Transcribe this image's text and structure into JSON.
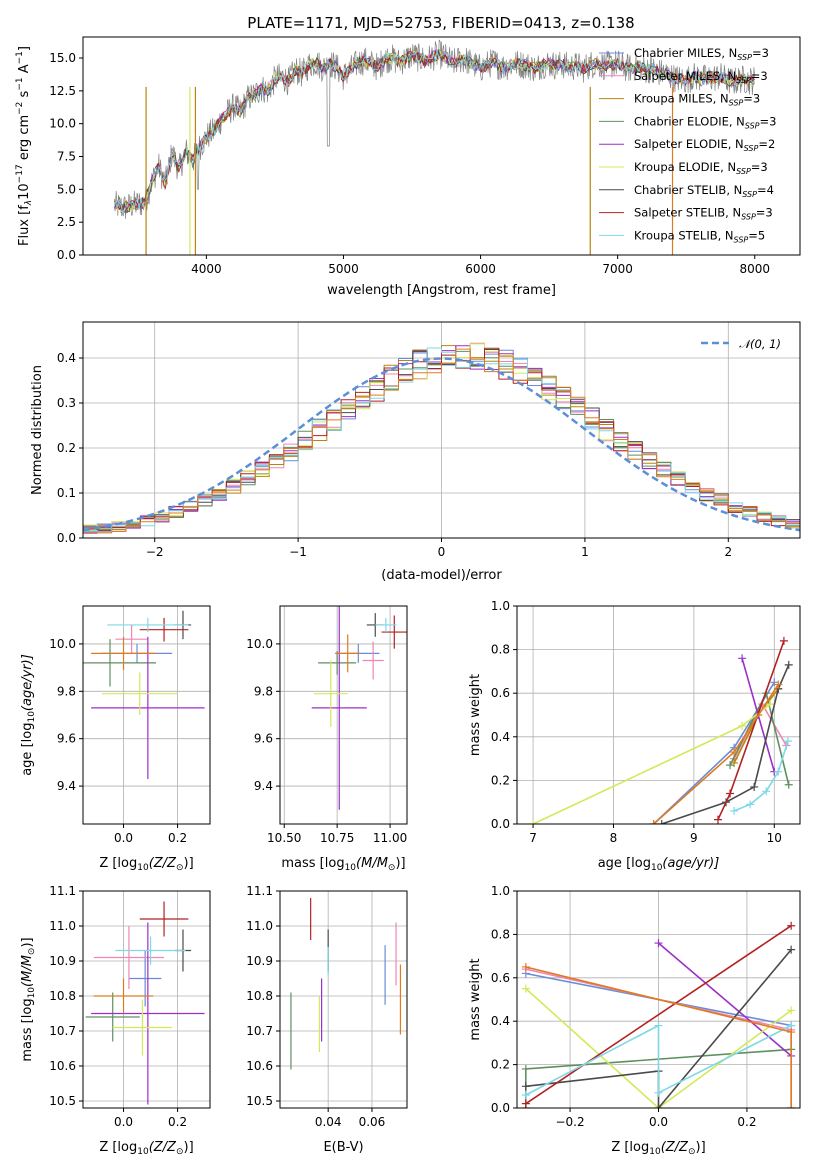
{
  "page_title": "PLATE=1171, MJD=52753, FIBERID=0413, z=0.138",
  "colors": {
    "Chabrier MILES": "#6a8cd8",
    "Salpeter MILES": "#f085b5",
    "Kroupa MILES": "#b8860b",
    "Chabrier ELODIE": "#5f8f5f",
    "Salpeter ELODIE": "#9b30c8",
    "Kroupa ELODIE": "#d4e85a",
    "Chabrier STELIB": "#4a4a4a",
    "Salpeter STELIB": "#b22222",
    "Kroupa STELIB": "#7fd8e6",
    "orange": "#e07a20",
    "data": "#808080"
  },
  "chart_data": [
    {
      "type": "line",
      "title": "PLATE=1171, MJD=52753, FIBERID=0413, z=0.138",
      "xlabel": "wavelength [Angstrom, rest frame]",
      "ylabel_parts": [
        "Flux [f",
        "λ",
        "10",
        "−17",
        " erg cm",
        "−2",
        " s",
        "−1",
        " A",
        "−1",
        "]"
      ],
      "xlim": [
        3100,
        8330
      ],
      "ylim": [
        0,
        16.6
      ],
      "xticks": [
        4000,
        5000,
        6000,
        7000,
        8000
      ],
      "yticks": [
        "0.0",
        "2.5",
        "5.0",
        "7.5",
        "10.0",
        "12.5",
        "15.0"
      ],
      "ytick_values": [
        0,
        2.5,
        5,
        7.5,
        10,
        12.5,
        15
      ],
      "legend_position": "right",
      "legend": [
        {
          "name": "Chabrier MILES",
          "n": "3"
        },
        {
          "name": "Salpeter MILES",
          "n": "3"
        },
        {
          "name": "Kroupa MILES",
          "n": "3"
        },
        {
          "name": "Chabrier ELODIE",
          "n": "3"
        },
        {
          "name": "Salpeter ELODIE",
          "n": "2"
        },
        {
          "name": "Kroupa ELODIE",
          "n": "3"
        },
        {
          "name": "Chabrier STELIB",
          "n": "4"
        },
        {
          "name": "Salpeter STELIB",
          "n": "3"
        },
        {
          "name": "Kroupa STELIB",
          "n": "5"
        }
      ],
      "legend_subscript": "SSP",
      "legend_prefix": "N",
      "spectrum_x": [
        3330,
        3400,
        3500,
        3550,
        3600,
        3650,
        3700,
        3750,
        3800,
        3850,
        3900,
        3950,
        4000,
        4050,
        4100,
        4150,
        4200,
        4250,
        4300,
        4350,
        4400,
        4450,
        4500,
        4550,
        4600,
        4650,
        4700,
        4750,
        4800,
        4850,
        4900,
        4950,
        5000,
        5050,
        5100,
        5150,
        5200,
        5250,
        5300,
        5350,
        5400,
        5450,
        5500,
        5550,
        5600,
        5650,
        5700,
        5750,
        5800,
        5850,
        5900,
        5950,
        6000,
        6050,
        6100,
        6150,
        6200,
        6250,
        6300,
        6350,
        6400,
        6450,
        6500,
        6550,
        6600,
        6650,
        6700,
        6750,
        6800,
        6850,
        6900,
        6950,
        7000,
        7050,
        7100,
        7150,
        7200,
        7250,
        7300,
        7350,
        7400,
        7450,
        7500,
        7550,
        7600,
        7650,
        7700,
        7750,
        7800,
        7850,
        7900,
        7950,
        8000
      ],
      "spectrum_y": [
        3.8,
        3.6,
        3.9,
        4.0,
        5.5,
        6.8,
        5.4,
        7.8,
        6.5,
        7.9,
        7.2,
        8.2,
        9.0,
        9.4,
        10.2,
        10.8,
        11.3,
        10.9,
        11.9,
        12.2,
        12.7,
        12.5,
        13.4,
        13.6,
        13.2,
        14.1,
        13.8,
        14.5,
        14.7,
        14.2,
        14.6,
        14.3,
        13.6,
        14.1,
        14.6,
        14.8,
        14.6,
        14.3,
        14.9,
        15.0,
        14.7,
        14.9,
        15.2,
        15.0,
        14.8,
        15.1,
        15.3,
        15.0,
        14.6,
        14.9,
        14.8,
        14.5,
        14.2,
        14.5,
        14.7,
        14.3,
        14.4,
        14.6,
        14.5,
        14.4,
        14.2,
        14.5,
        14.6,
        14.4,
        14.5,
        14.3,
        14.4,
        14.2,
        14.5,
        14.6,
        14.4,
        14.5,
        14.6,
        14.3,
        14.2,
        14.4,
        14.1,
        14.2,
        13.9,
        13.8,
        13.5,
        13.4,
        13.3,
        13.6,
        13.5,
        13.4,
        13.5,
        13.6,
        13.3,
        13.2,
        13.4,
        13.3,
        13.3
      ]
    },
    {
      "type": "histogram",
      "xlabel": "(data-model)/error",
      "ylabel": "Normed distribution",
      "xlim": [
        -2.5,
        2.5
      ],
      "ylim": [
        0,
        0.48
      ],
      "xticks": [
        "−2",
        "−1",
        "0",
        "1",
        "2"
      ],
      "xtick_values": [
        -2,
        -1,
        0,
        1,
        2
      ],
      "yticks": [
        "0.0",
        "0.1",
        "0.2",
        "0.3",
        "0.4"
      ],
      "ytick_values": [
        0,
        0.1,
        0.2,
        0.3,
        0.4
      ],
      "grid": true,
      "legend_position": "top-right",
      "reference_label": "𝒩(0, 1)",
      "bin_edges_start": -2.5,
      "bin_width": 0.1,
      "hist_base": [
        0.018,
        0.021,
        0.026,
        0.032,
        0.039,
        0.048,
        0.058,
        0.07,
        0.083,
        0.098,
        0.114,
        0.132,
        0.151,
        0.172,
        0.193,
        0.216,
        0.24,
        0.264,
        0.288,
        0.312,
        0.334,
        0.354,
        0.372,
        0.386,
        0.396,
        0.402,
        0.404,
        0.402,
        0.396,
        0.386,
        0.372,
        0.354,
        0.334,
        0.312,
        0.288,
        0.264,
        0.24,
        0.216,
        0.193,
        0.172,
        0.151,
        0.132,
        0.114,
        0.098,
        0.083,
        0.07,
        0.058,
        0.048,
        0.039,
        0.032
      ]
    },
    {
      "type": "scatter",
      "xlabel_parts": [
        "Z [log",
        "10",
        "(Z/Z",
        "⊙",
        ")]"
      ],
      "ylabel_parts": [
        "age  [log",
        "10",
        "(age/yr)]"
      ],
      "xlim": [
        -0.15,
        0.32
      ],
      "ylim": [
        9.24,
        10.16
      ],
      "xticks": [
        "0.0",
        "0.2"
      ],
      "xtick_values": [
        0,
        0.2
      ],
      "yticks": [
        "9.4",
        "9.6",
        "9.8",
        "10.0"
      ],
      "ytick_values": [
        9.4,
        9.6,
        9.8,
        10.0
      ],
      "points": [
        {
          "s": "Chabrier MILES",
          "x": 0.05,
          "y": 9.96,
          "xerr": 0.13,
          "yerr": 0.04
        },
        {
          "s": "Salpeter MILES",
          "x": 0.03,
          "y": 10.02,
          "xerr": 0.06,
          "yerr": 0.06
        },
        {
          "s": "Chabrier ELODIE",
          "x": -0.05,
          "y": 9.92,
          "xerr": 0.17,
          "yerr": 0.1
        },
        {
          "s": "Salpeter ELODIE",
          "x": 0.09,
          "y": 9.73,
          "xerr": 0.21,
          "yerr": 0.3
        },
        {
          "s": "Kroupa ELODIE",
          "x": 0.06,
          "y": 9.79,
          "xerr": 0.14,
          "yerr": 0.09
        },
        {
          "s": "Chabrier STELIB",
          "x": 0.22,
          "y": 10.08,
          "xerr": 0.03,
          "yerr": 0.06
        },
        {
          "s": "Salpeter STELIB",
          "x": 0.15,
          "y": 10.06,
          "xerr": 0.09,
          "yerr": 0.05
        },
        {
          "s": "Kroupa STELIB",
          "x": 0.09,
          "y": 10.08,
          "xerr": 0.15,
          "yerr": 0.03
        },
        {
          "s": "orange",
          "x": 0.0,
          "y": 9.96,
          "xerr": 0.12,
          "yerr": 0.07
        }
      ]
    },
    {
      "type": "scatter",
      "xlabel_parts": [
        "mass [log",
        "10",
        "(M/M",
        "⊙",
        ")]"
      ],
      "xlim": [
        10.48,
        11.08
      ],
      "ylim": [
        9.24,
        10.16
      ],
      "xticks": [
        "10.50",
        "10.75",
        "11.00"
      ],
      "xtick_values": [
        10.5,
        10.75,
        11.0
      ],
      "yticks": [
        "9.4",
        "9.6",
        "9.8",
        "10.0"
      ],
      "ytick_values": [
        9.4,
        9.6,
        9.8,
        10.0
      ],
      "points": [
        {
          "s": "Chabrier MILES",
          "x": 10.85,
          "y": 9.96,
          "xerr": 0.1,
          "yerr": 0.04
        },
        {
          "s": "Salpeter MILES",
          "x": 10.92,
          "y": 9.93,
          "xerr": 0.05,
          "yerr": 0.08
        },
        {
          "s": "Chabrier ELODIE",
          "x": 10.75,
          "y": 9.92,
          "xerr": 0.09,
          "yerr": 0.05
        },
        {
          "s": "Salpeter ELODIE",
          "x": 10.76,
          "y": 9.73,
          "xerr": 0.13,
          "yerr": 0.43
        },
        {
          "s": "Kroupa ELODIE",
          "x": 10.72,
          "y": 9.79,
          "xerr": 0.08,
          "yerr": 0.14
        },
        {
          "s": "Chabrier STELIB",
          "x": 10.93,
          "y": 10.08,
          "xerr": 0.04,
          "yerr": 0.05
        },
        {
          "s": "Salpeter STELIB",
          "x": 11.02,
          "y": 10.05,
          "xerr": 0.06,
          "yerr": 0.07
        },
        {
          "s": "Kroupa STELIB",
          "x": 10.98,
          "y": 10.08,
          "xerr": 0.05,
          "yerr": 0.03
        },
        {
          "s": "orange",
          "x": 10.8,
          "y": 9.96,
          "xerr": 0.06,
          "yerr": 0.08
        }
      ]
    },
    {
      "type": "line",
      "xlabel_parts": [
        "age  [log",
        "10",
        "(age/yr)]"
      ],
      "ylabel": "mass weight",
      "xlim": [
        6.8,
        10.32
      ],
      "ylim": [
        0,
        1.0
      ],
      "xticks": [
        "7",
        "8",
        "9",
        "10"
      ],
      "xtick_values": [
        7,
        8,
        9,
        10
      ],
      "yticks": [
        "0.0",
        "0.2",
        "0.4",
        "0.6",
        "0.8",
        "1.0"
      ],
      "ytick_values": [
        0,
        0.2,
        0.4,
        0.6,
        0.8,
        1.0
      ],
      "grid": true,
      "series": [
        {
          "s": "Chabrier MILES",
          "x": [
            8.5,
            9.5,
            10.0
          ],
          "y": [
            0.0,
            0.35,
            0.65
          ]
        },
        {
          "s": "Salpeter MILES",
          "x": [
            9.5,
            9.85,
            10.15
          ],
          "y": [
            0.3,
            0.55,
            0.36
          ]
        },
        {
          "s": "Kroupa MILES",
          "x": [
            9.5,
            9.8,
            10.05
          ],
          "y": [
            0.28,
            0.5,
            0.62
          ]
        },
        {
          "s": "Chabrier ELODIE",
          "x": [
            9.45,
            9.9,
            10.18
          ],
          "y": [
            0.27,
            0.6,
            0.18
          ]
        },
        {
          "s": "Salpeter ELODIE",
          "x": [
            9.6,
            10.0
          ],
          "y": [
            0.76,
            0.24
          ]
        },
        {
          "s": "Kroupa ELODIE",
          "x": [
            7.0,
            9.6,
            9.95
          ],
          "y": [
            0.0,
            0.45,
            0.55
          ]
        },
        {
          "s": "Chabrier STELIB",
          "x": [
            8.6,
            9.4,
            9.75,
            10.05,
            10.18
          ],
          "y": [
            0.0,
            0.1,
            0.17,
            0.62,
            0.73
          ]
        },
        {
          "s": "Salpeter STELIB",
          "x": [
            9.3,
            9.45,
            10.12
          ],
          "y": [
            0.02,
            0.14,
            0.84
          ]
        },
        {
          "s": "Kroupa STELIB",
          "x": [
            9.5,
            9.7,
            9.9,
            10.05,
            10.17
          ],
          "y": [
            0.06,
            0.09,
            0.15,
            0.24,
            0.38
          ]
        },
        {
          "s": "orange",
          "x": [
            8.5,
            9.5,
            10.05
          ],
          "y": [
            0.0,
            0.33,
            0.64
          ]
        }
      ]
    },
    {
      "type": "scatter",
      "xlabel_parts": [
        "Z [log",
        "10",
        "(Z/Z",
        "⊙",
        ")]"
      ],
      "ylabel_parts": [
        "mass [log",
        "10",
        "(M/M",
        "⊙",
        ")]"
      ],
      "xlim": [
        -0.15,
        0.32
      ],
      "ylim": [
        10.48,
        11.1
      ],
      "xticks": [
        "0.0",
        "0.2"
      ],
      "xtick_values": [
        0,
        0.2
      ],
      "yticks": [
        "10.5",
        "10.6",
        "10.7",
        "10.8",
        "10.9",
        "11.0",
        "11.1"
      ],
      "ytick_values": [
        10.5,
        10.6,
        10.7,
        10.8,
        10.9,
        11.0,
        11.1
      ],
      "points": [
        {
          "s": "Chabrier MILES",
          "x": 0.08,
          "y": 10.85,
          "xerr": 0.06,
          "yerr": 0.08
        },
        {
          "s": "Salpeter MILES",
          "x": 0.02,
          "y": 10.91,
          "xerr": 0.13,
          "yerr": 0.09
        },
        {
          "s": "Chabrier ELODIE",
          "x": -0.04,
          "y": 10.74,
          "xerr": 0.1,
          "yerr": 0.07
        },
        {
          "s": "Salpeter ELODIE",
          "x": 0.09,
          "y": 10.75,
          "xerr": 0.21,
          "yerr": 0.26
        },
        {
          "s": "Kroupa ELODIE",
          "x": 0.07,
          "y": 10.71,
          "xerr": 0.11,
          "yerr": 0.08
        },
        {
          "s": "Chabrier STELIB",
          "x": 0.22,
          "y": 10.93,
          "xerr": 0.03,
          "yerr": 0.06
        },
        {
          "s": "Salpeter STELIB",
          "x": 0.15,
          "y": 11.02,
          "xerr": 0.09,
          "yerr": 0.05
        },
        {
          "s": "Kroupa STELIB",
          "x": 0.1,
          "y": 10.93,
          "xerr": 0.13,
          "yerr": 0.04
        },
        {
          "s": "orange",
          "x": 0.0,
          "y": 10.8,
          "xerr": 0.11,
          "yerr": 0.05
        }
      ]
    },
    {
      "type": "scatter",
      "xlabel": "E(B-V)",
      "xlim": [
        0.018,
        0.076
      ],
      "ylim": [
        10.48,
        11.1
      ],
      "xticks": [
        "0.04",
        "0.06"
      ],
      "xtick_values": [
        0.04,
        0.06
      ],
      "yticks": [
        "10.5",
        "10.6",
        "10.7",
        "10.8",
        "10.9",
        "11.0",
        "11.1"
      ],
      "ytick_values": [
        10.5,
        10.6,
        10.7,
        10.8,
        10.9,
        11.0,
        11.1
      ],
      "points": [
        {
          "s": "Chabrier MILES",
          "x": 0.066,
          "y": 10.86,
          "xerr": 0,
          "yerr": 0.085
        },
        {
          "s": "Salpeter MILES",
          "x": 0.071,
          "y": 10.92,
          "xerr": 0,
          "yerr": 0.09
        },
        {
          "s": "Chabrier ELODIE",
          "x": 0.023,
          "y": 10.7,
          "xerr": 0,
          "yerr": 0.11
        },
        {
          "s": "Salpeter ELODIE",
          "x": 0.037,
          "y": 10.76,
          "xerr": 0,
          "yerr": 0.09
        },
        {
          "s": "Kroupa ELODIE",
          "x": 0.036,
          "y": 10.72,
          "xerr": 0,
          "yerr": 0.08
        },
        {
          "s": "Chabrier STELIB",
          "x": 0.04,
          "y": 10.93,
          "xerr": 0,
          "yerr": 0.06
        },
        {
          "s": "Salpeter STELIB",
          "x": 0.032,
          "y": 11.02,
          "xerr": 0,
          "yerr": 0.06
        },
        {
          "s": "Kroupa STELIB",
          "x": 0.04,
          "y": 10.9,
          "xerr": 0,
          "yerr": 0.04
        },
        {
          "s": "orange",
          "x": 0.073,
          "y": 10.79,
          "xerr": 0,
          "yerr": 0.1
        }
      ]
    },
    {
      "type": "line",
      "xlabel_parts": [
        "Z [log",
        "10",
        "(Z/Z",
        "⊙",
        ")]"
      ],
      "ylabel": "mass weight",
      "xlim": [
        -0.32,
        0.32
      ],
      "ylim": [
        0,
        1.0
      ],
      "xticks": [
        "−0.2",
        "0.0",
        "0.2"
      ],
      "xtick_values": [
        -0.2,
        0,
        0.2
      ],
      "yticks": [
        "0.0",
        "0.2",
        "0.4",
        "0.6",
        "0.8",
        "1.0"
      ],
      "ytick_values": [
        0,
        0.2,
        0.4,
        0.6,
        0.8,
        1.0
      ],
      "grid": true,
      "series": [
        {
          "s": "Chabrier MILES",
          "x": [
            -0.3,
            0.3
          ],
          "y": [
            0.62,
            0.38
          ]
        },
        {
          "s": "Salpeter MILES",
          "x": [
            -0.3,
            0.3,
            0.3
          ],
          "y": [
            0.64,
            0.36,
            0.0
          ]
        },
        {
          "s": "Chabrier ELODIE",
          "x": [
            -0.3,
            -0.3,
            0.3
          ],
          "y": [
            0.0,
            0.18,
            0.27
          ]
        },
        {
          "s": "Salpeter ELODIE",
          "x": [
            0.0,
            0.3
          ],
          "y": [
            0.76,
            0.24
          ]
        },
        {
          "s": "Kroupa ELODIE",
          "x": [
            -0.3,
            0.0,
            0.3
          ],
          "y": [
            0.55,
            0.0,
            0.45
          ]
        },
        {
          "s": "Chabrier STELIB",
          "x": [
            -0.3,
            0.0,
            0.0,
            0.3
          ],
          "y": [
            0.1,
            0.17,
            0.0,
            0.73
          ]
        },
        {
          "s": "Salpeter STELIB",
          "x": [
            -0.3,
            0.3
          ],
          "y": [
            0.02,
            0.84
          ]
        },
        {
          "s": "Kroupa STELIB",
          "x": [
            -0.3,
            0.0,
            0.0,
            0.3
          ],
          "y": [
            0.06,
            0.38,
            0.07,
            0.38
          ]
        },
        {
          "s": "orange",
          "x": [
            -0.3,
            0.3,
            0.3
          ],
          "y": [
            0.65,
            0.35,
            0.0
          ]
        }
      ]
    }
  ]
}
